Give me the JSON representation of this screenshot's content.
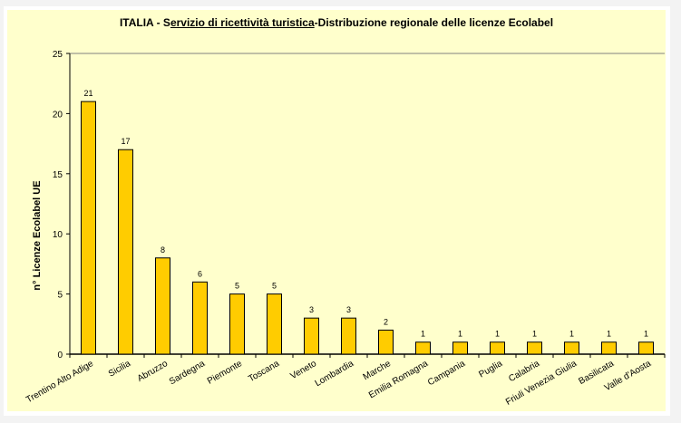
{
  "chart_data": {
    "type": "bar",
    "title_parts": [
      "ITALIA - S",
      "ervizio di ricettività turistica",
      "-Distribuzione regionale delle licenze Ecolabel"
    ],
    "xlabel": "",
    "ylabel": "n° Licenze  Ecolabel  UE",
    "ylim": [
      0,
      25
    ],
    "yticks": [
      0,
      5,
      10,
      15,
      20,
      25
    ],
    "grid": false,
    "legend": "none",
    "bar_color": "#ffcc00",
    "categories": [
      "Trentino Alto Adige",
      "Sicilia",
      "Abruzzo",
      "Sardegna",
      "Piemonte",
      "Toscana",
      "Veneto",
      "Lombardia",
      "Marche",
      "Emilia Romagna",
      "Campania",
      "Puglia",
      "Calabria",
      "Friuli Venezia Giulia",
      "Basilicata",
      "Valle d'Aosta"
    ],
    "values": [
      21,
      17,
      8,
      6,
      5,
      5,
      3,
      3,
      2,
      1,
      1,
      1,
      1,
      1,
      1,
      1
    ]
  }
}
